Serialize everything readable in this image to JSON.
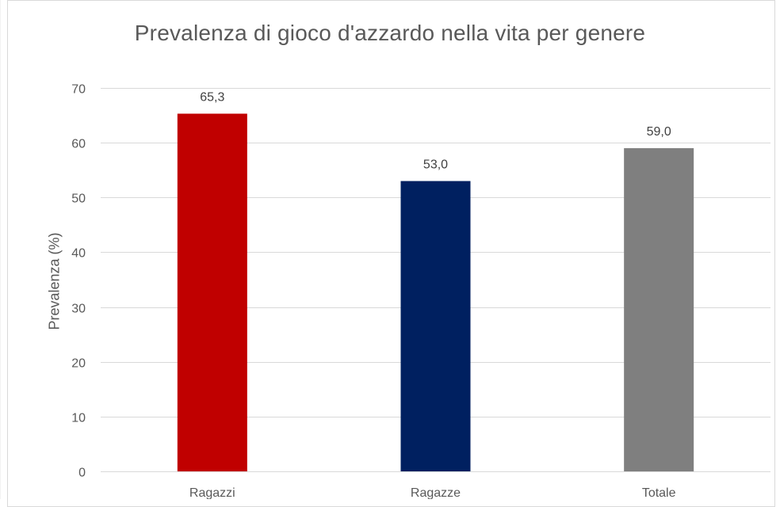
{
  "chart_data": {
    "type": "bar",
    "title": "Prevalenza di gioco d'azzardo nella vita per genere",
    "xlabel": "",
    "ylabel": "Prevalenza (%)",
    "categories": [
      "Ragazzi",
      "Ragazze",
      "Totale"
    ],
    "values": [
      65.3,
      53.0,
      59.0
    ],
    "data_labels": [
      "65,3",
      "53,0",
      "59,0"
    ],
    "colors": [
      "#c00000",
      "#002060",
      "#7f7f7f"
    ],
    "ylim": [
      0,
      70
    ],
    "yticks": [
      0,
      10,
      20,
      30,
      40,
      50,
      60,
      70
    ],
    "ytick_labels": [
      "0",
      "10",
      "20",
      "30",
      "40",
      "50",
      "60",
      "70"
    ],
    "grid": true,
    "gridline_color": "#d9d9d9",
    "legend": "none"
  }
}
